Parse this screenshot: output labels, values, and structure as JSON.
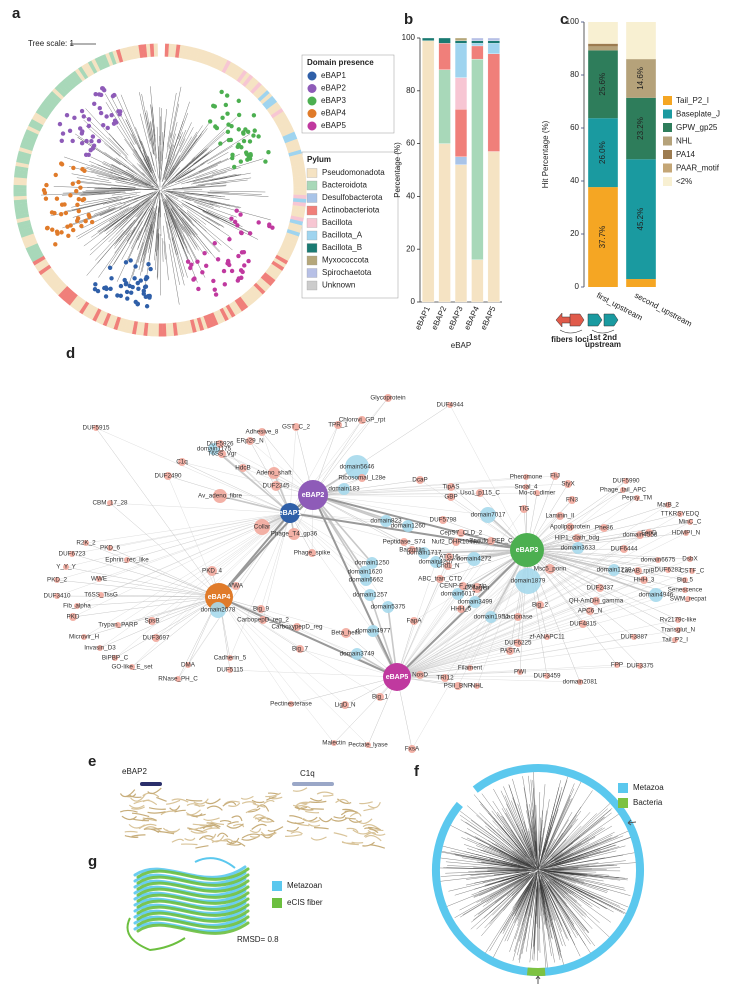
{
  "panel_labels": [
    "a",
    "b",
    "c",
    "d",
    "e",
    "f",
    "g"
  ],
  "panel_a": {
    "tree_scale": "Tree scale: 1",
    "domain_legend": {
      "title": "Domain presence",
      "items": [
        {
          "name": "eBAP1",
          "color": "#2f5fa8"
        },
        {
          "name": "eBAP2",
          "color": "#8e5bb8"
        },
        {
          "name": "eBAP3",
          "color": "#4caf50"
        },
        {
          "name": "eBAP4",
          "color": "#e07b2a"
        },
        {
          "name": "eBAP5",
          "color": "#c0399f"
        }
      ]
    }
  },
  "chart_data": [
    {
      "type": "stacked_bar",
      "legend_title": "Pylum",
      "xlabel": "eBAP",
      "ylabel": "Percentage (%)",
      "categories": [
        "eBAP1",
        "eBAP2",
        "eBAP3",
        "eBAP4",
        "eBAP5"
      ],
      "ylim": [
        0,
        100
      ],
      "yticks": [
        0,
        20,
        40,
        60,
        80,
        100
      ],
      "series": [
        {
          "name": "Pseudomonadota",
          "color": "#f5e3c3",
          "values": [
            99,
            60,
            52,
            16,
            57
          ]
        },
        {
          "name": "Bacteroidota",
          "color": "#a8d8b9",
          "values": [
            0,
            28,
            0,
            76,
            0
          ]
        },
        {
          "name": "Desulfobacterota",
          "color": "#a9c4e8",
          "values": [
            0,
            0,
            3,
            0,
            0
          ]
        },
        {
          "name": "Actinobacteriota",
          "color": "#f07f7a",
          "values": [
            0,
            10,
            18,
            5,
            37
          ]
        },
        {
          "name": "Bacillota",
          "color": "#f7c6d3",
          "values": [
            0,
            0,
            12,
            0,
            0
          ]
        },
        {
          "name": "Bacillota_A",
          "color": "#9fd4ef",
          "values": [
            0,
            0,
            13,
            1,
            4
          ]
        },
        {
          "name": "Bacillota_B",
          "color": "#1a7a72",
          "values": [
            1,
            2,
            1,
            1,
            1
          ]
        },
        {
          "name": "Myxococcota",
          "color": "#b5a77a",
          "values": [
            0,
            0,
            1,
            0,
            0
          ]
        },
        {
          "name": "Spirochaetota",
          "color": "#b7c0e6",
          "values": [
            0,
            0,
            0,
            1,
            1
          ]
        },
        {
          "name": "Unknown",
          "color": "#cccccc",
          "values": [
            0,
            0,
            0,
            0,
            0
          ]
        }
      ]
    },
    {
      "type": "stacked_bar",
      "ylabel": "Hit Percentage (%)",
      "categories": [
        "first_upstream",
        "second_upstream"
      ],
      "ylim": [
        0,
        100
      ],
      "yticks": [
        0,
        20,
        40,
        60,
        80,
        100
      ],
      "series": [
        {
          "name": "Tail_P2_I",
          "color": "#f5a623",
          "values": [
            37.7,
            3
          ],
          "value_labels": [
            "37.7%",
            null
          ]
        },
        {
          "name": "Baseplate_J",
          "color": "#1a9aa0",
          "values": [
            26.0,
            45.2
          ],
          "value_labels": [
            "26.0%",
            "45.2%"
          ]
        },
        {
          "name": "GPW_gp25",
          "color": "#2e7d5b",
          "values": [
            25.6,
            23.2
          ],
          "value_labels": [
            "25.6%",
            "23.2%"
          ]
        },
        {
          "name": "NHL",
          "color": "#b5a27a",
          "values": [
            1.5,
            14.6
          ],
          "value_labels": [
            null,
            "14.6%"
          ]
        },
        {
          "name": "PA14",
          "color": "#9c7b50",
          "values": [
            1,
            0
          ],
          "value_labels": [
            null,
            null
          ]
        },
        {
          "name": "PAAR_motif",
          "color": "#c4a676",
          "values": [
            0,
            0
          ],
          "value_labels": [
            null,
            null
          ]
        },
        {
          "name": "<2%",
          "color": "#f8f0d2",
          "values": [
            8.2,
            14
          ],
          "value_labels": [
            null,
            null
          ]
        }
      ]
    }
  ],
  "panel_c_icon": {
    "left": "fibers loci",
    "right_top": "1st  2nd",
    "right_bottom": "upstream"
  },
  "network": {
    "nodes": [
      {
        "label": "eBAP1",
        "color": "#2f5fa8"
      },
      {
        "label": "eBAP2",
        "color": "#8e5bb8"
      },
      {
        "label": "eBAP3",
        "color": "#4caf50"
      },
      {
        "label": "eBAP4",
        "color": "#e07b2a"
      },
      {
        "label": "eBAP5",
        "color": "#c0399f"
      },
      {
        "label": "domain5646",
        "color": "#a6d9ec"
      },
      {
        "label": "domain1175",
        "color": "#a6d9ec"
      },
      {
        "label": "domain183",
        "color": "#a6d9ec"
      },
      {
        "label": "domain823",
        "color": "#a6d9ec"
      },
      {
        "label": "domain1260",
        "color": "#a6d9ec"
      },
      {
        "label": "domain7017",
        "color": "#a6d9ec"
      },
      {
        "label": "domain3633",
        "color": "#a6d9ec"
      },
      {
        "label": "domain4272",
        "color": "#a6d9ec"
      },
      {
        "label": "domain1250",
        "color": "#a6d9ec"
      },
      {
        "label": "domain1620",
        "color": "#a6d9ec"
      },
      {
        "label": "domain6662",
        "color": "#a6d9ec"
      },
      {
        "label": "domain1717",
        "color": "#a6d9ec"
      },
      {
        "label": "domain4207",
        "color": "#a6d9ec"
      },
      {
        "label": "domain1879",
        "color": "#a6d9ec"
      },
      {
        "label": "domain6017",
        "color": "#a6d9ec"
      },
      {
        "label": "domain1257",
        "color": "#a6d9ec"
      },
      {
        "label": "domain2078",
        "color": "#a6d9ec"
      },
      {
        "label": "domain5375",
        "color": "#a6d9ec"
      },
      {
        "label": "domain3499",
        "color": "#a6d9ec"
      },
      {
        "label": "domain1954",
        "color": "#a6d9ec"
      },
      {
        "label": "domain4977",
        "color": "#a6d9ec"
      },
      {
        "label": "domain3749",
        "color": "#a6d9ec"
      },
      {
        "label": "domain1220",
        "color": "#a6d9ec"
      },
      {
        "label": "domain4946",
        "color": "#a6d9ec"
      },
      {
        "label": "domain4558",
        "color": "#f2a99c"
      },
      {
        "label": "Glycoprotein",
        "color": "#f2a99c"
      },
      {
        "label": "DUF4944",
        "color": "#f2a99c"
      },
      {
        "label": "Chlorovi_GP_rpt",
        "color": "#f2a99c"
      },
      {
        "label": "TPR_1",
        "color": "#f2a99c"
      },
      {
        "label": "GST_C_2",
        "color": "#f2a99c"
      },
      {
        "label": "DUF5915",
        "color": "#f2a99c"
      },
      {
        "label": "Adhesive_8",
        "color": "#f2a99c"
      },
      {
        "label": "ERp29_N",
        "color": "#f2a99c"
      },
      {
        "label": "DUF5926",
        "color": "#f2a99c"
      },
      {
        "label": "HdcB",
        "color": "#f2a99c"
      },
      {
        "label": "T6SS_Vgr",
        "color": "#f2a99c"
      },
      {
        "label": "C1q",
        "color": "#f2a99c"
      },
      {
        "label": "DUF2490",
        "color": "#f2a99c"
      },
      {
        "label": "DcaP",
        "color": "#f2a99c"
      },
      {
        "label": "Ribosomal_L28e",
        "color": "#f2a99c"
      },
      {
        "label": "Adeno_shaft",
        "color": "#f2a99c"
      },
      {
        "label": "DUF2345",
        "color": "#f2a99c"
      },
      {
        "label": "Av_adeno_fibre",
        "color": "#f2a99c"
      },
      {
        "label": "CBM_17_28",
        "color": "#f2a99c"
      },
      {
        "label": "Collar",
        "color": "#f2a99c"
      },
      {
        "label": "Phage_T4_gp36",
        "color": "#f2a99c"
      },
      {
        "label": "Phage_spike",
        "color": "#f2a99c"
      },
      {
        "label": "TipAS",
        "color": "#f2a99c"
      },
      {
        "label": "GBP",
        "color": "#f2a99c"
      },
      {
        "label": "Uso1_p115_C",
        "color": "#f2a99c"
      },
      {
        "label": "Pheromone",
        "color": "#f2a99c"
      },
      {
        "label": "Snoal_4",
        "color": "#f2a99c"
      },
      {
        "label": "Mo-co_dimer",
        "color": "#f2a99c"
      },
      {
        "label": "FliJ",
        "color": "#f2a99c"
      },
      {
        "label": "StyX",
        "color": "#f2a99c"
      },
      {
        "label": "DUF5990",
        "color": "#f2a99c"
      },
      {
        "label": "Phage_tail_APC",
        "color": "#f2a99c"
      },
      {
        "label": "Pepsy_TM",
        "color": "#f2a99c"
      },
      {
        "label": "MatB_2",
        "color": "#f2a99c"
      },
      {
        "label": "TTKRSYEDQ",
        "color": "#f2a99c"
      },
      {
        "label": "MinC_C",
        "color": "#f2a99c"
      },
      {
        "label": "HDMPI_N",
        "color": "#f2a99c"
      },
      {
        "label": "DUF5798",
        "color": "#f2a99c"
      },
      {
        "label": "Peptidase_S74",
        "color": "#f2a99c"
      },
      {
        "label": "Bactofilin",
        "color": "#f2a99c"
      },
      {
        "label": "CepS7_CLD_2",
        "color": "#f2a99c"
      },
      {
        "label": "Nuf2_DHR10-like",
        "color": "#f2a99c"
      },
      {
        "label": "Baculo_PEP_C",
        "color": "#f2a99c"
      },
      {
        "label": "ATG16",
        "color": "#f2a99c"
      },
      {
        "label": "Cnd1_N",
        "color": "#f2a99c"
      },
      {
        "label": "TIG",
        "color": "#f2a99c"
      },
      {
        "label": "FN3",
        "color": "#f2a99c"
      },
      {
        "label": "Laminin_II",
        "color": "#f2a99c"
      },
      {
        "label": "Apolipoprotein",
        "color": "#f2a99c"
      },
      {
        "label": "Phe86",
        "color": "#f2a99c"
      },
      {
        "label": "ExoD",
        "color": "#f2a99c"
      },
      {
        "label": "HIP1_clath_bdg",
        "color": "#f2a99c"
      },
      {
        "label": "DUF6444",
        "color": "#f2a99c"
      },
      {
        "label": "domain6675",
        "color": "#f2a99c"
      },
      {
        "label": "DUF6282",
        "color": "#f2a99c"
      },
      {
        "label": "DsbX",
        "color": "#f2a99c"
      },
      {
        "label": "CSTF_C",
        "color": "#f2a99c"
      },
      {
        "label": "Big_5",
        "color": "#f2a99c"
      },
      {
        "label": "Senescence",
        "color": "#f2a99c"
      },
      {
        "label": "SWM_recpat",
        "color": "#f2a99c"
      },
      {
        "label": "ABC_tran_CTD",
        "color": "#f2a99c"
      },
      {
        "label": "CENP-F_leu_zip",
        "color": "#f2a99c"
      },
      {
        "label": "Collagen",
        "color": "#f2a99c"
      },
      {
        "label": "Msc5_porin",
        "color": "#f2a99c"
      },
      {
        "label": "LacAB_rpiB",
        "color": "#f2a99c"
      },
      {
        "label": "HHH_3",
        "color": "#f2a99c"
      },
      {
        "label": "DUF2437",
        "color": "#f2a99c"
      },
      {
        "label": "Lactonase",
        "color": "#f2a99c"
      },
      {
        "label": "QH-AmDH_gamma",
        "color": "#f2a99c"
      },
      {
        "label": "APC6_N",
        "color": "#f2a99c"
      },
      {
        "label": "DUF4815",
        "color": "#f2a99c"
      },
      {
        "label": "HHH_5",
        "color": "#f2a99c"
      },
      {
        "label": "FapA",
        "color": "#f2a99c"
      },
      {
        "label": "Big_2",
        "color": "#f2a99c"
      },
      {
        "label": "zf-ANAPC11",
        "color": "#f2a99c"
      },
      {
        "label": "DUF3887",
        "color": "#f2a99c"
      },
      {
        "label": "DUF6225",
        "color": "#f2a99c"
      },
      {
        "label": "PASTA",
        "color": "#f2a99c"
      },
      {
        "label": "DUF3375",
        "color": "#f2a99c"
      },
      {
        "label": "FPP",
        "color": "#f2a99c"
      },
      {
        "label": "Rv2179c-like",
        "color": "#f2a99c"
      },
      {
        "label": "Transglut_N",
        "color": "#f2a99c"
      },
      {
        "label": "Tail_P2_I",
        "color": "#f2a99c"
      },
      {
        "label": "Filament",
        "color": "#f2a99c"
      },
      {
        "label": "PWI",
        "color": "#f2a99c"
      },
      {
        "label": "DUF3459",
        "color": "#f2a99c"
      },
      {
        "label": "domain2081",
        "color": "#f2a99c"
      },
      {
        "label": "TRI12",
        "color": "#f2a99c"
      },
      {
        "label": "PSII_BNR",
        "color": "#f2a99c"
      },
      {
        "label": "NHL",
        "color": "#f2a99c"
      },
      {
        "label": "NosD",
        "color": "#f2a99c"
      },
      {
        "label": "Big_1",
        "color": "#f2a99c"
      },
      {
        "label": "LigD_N",
        "color": "#f2a99c"
      },
      {
        "label": "Pectinesterase",
        "color": "#f2a99c"
      },
      {
        "label": "Malectin",
        "color": "#f2a99c"
      },
      {
        "label": "Pectate_lyase",
        "color": "#f2a99c"
      },
      {
        "label": "FxsA",
        "color": "#f2a99c"
      },
      {
        "label": "CarboxypepD_reg",
        "color": "#f2a99c"
      },
      {
        "label": "Beta_helix",
        "color": "#f2a99c"
      },
      {
        "label": "Big_7",
        "color": "#f2a99c"
      },
      {
        "label": "Big_9",
        "color": "#f2a99c"
      },
      {
        "label": "CarbopepD_reg_2",
        "color": "#f2a99c"
      },
      {
        "label": "VWA",
        "color": "#f2a99c"
      },
      {
        "label": "PKD_4",
        "color": "#f2a99c"
      },
      {
        "label": "PKD_6",
        "color": "#f2a99c"
      },
      {
        "label": "R2K_2",
        "color": "#f2a99c"
      },
      {
        "label": "DUF6723",
        "color": "#f2a99c"
      },
      {
        "label": "Ephrin_rec_like",
        "color": "#f2a99c"
      },
      {
        "label": "Y_Y_Y",
        "color": "#f2a99c"
      },
      {
        "label": "PKD_2",
        "color": "#f2a99c"
      },
      {
        "label": "WWE",
        "color": "#f2a99c"
      },
      {
        "label": "DUF3410",
        "color": "#f2a99c"
      },
      {
        "label": "T6SS_TssG",
        "color": "#f2a99c"
      },
      {
        "label": "Fib_alpha",
        "color": "#f2a99c"
      },
      {
        "label": "PKD",
        "color": "#f2a99c"
      },
      {
        "label": "SpsB",
        "color": "#f2a99c"
      },
      {
        "label": "Trypan_PARP",
        "color": "#f2a99c"
      },
      {
        "label": "Microvir_H",
        "color": "#f2a99c"
      },
      {
        "label": "DUF3697",
        "color": "#f2a99c"
      },
      {
        "label": "Invasin_D3",
        "color": "#f2a99c"
      },
      {
        "label": "Cadherin_5",
        "color": "#f2a99c"
      },
      {
        "label": "BiPBP_C",
        "color": "#f2a99c"
      },
      {
        "label": "DUF5115",
        "color": "#f2a99c"
      },
      {
        "label": "GO-like_E_set",
        "color": "#f2a99c"
      },
      {
        "label": "DMA",
        "color": "#f2a99c"
      },
      {
        "label": "RNase_PH_C",
        "color": "#f2a99c"
      }
    ]
  },
  "panel_e": {
    "label_left": "eBAP2",
    "label_right": "C1q"
  },
  "panel_f": {
    "legend": [
      {
        "name": "Metazoa",
        "color": "#5bc8ee"
      },
      {
        "name": "Bacteria",
        "color": "#7dc242"
      }
    ]
  },
  "panel_g": {
    "legend": [
      {
        "name": "Metazoan",
        "color": "#5bc8ee"
      },
      {
        "name": "eCIS fiber",
        "color": "#6cbf3f"
      }
    ],
    "annotation": "RMSD= 0.8"
  }
}
